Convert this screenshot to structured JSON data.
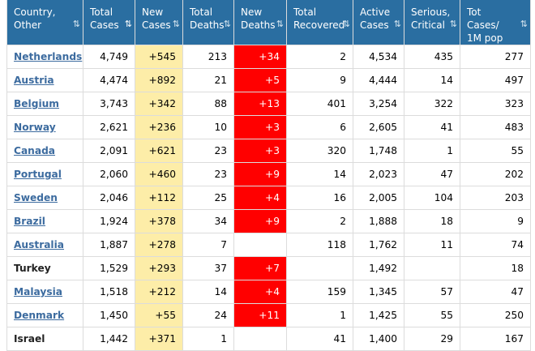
{
  "headers": [
    {
      "label": "Country,\nOther",
      "sort_icon": "sort-icon"
    },
    {
      "label": "Total\nCases",
      "sort_icon": "sort-desc-icon"
    },
    {
      "label": "New\nCases",
      "sort_icon": "sort-icon"
    },
    {
      "label": "Total\nDeaths",
      "sort_icon": "sort-icon"
    },
    {
      "label": "New\nDeaths",
      "sort_icon": "sort-icon"
    },
    {
      "label": "Total\nRecovered",
      "sort_icon": "sort-icon"
    },
    {
      "label": "Active\nCases",
      "sort_icon": "sort-icon"
    },
    {
      "label": "Serious,\nCritical",
      "sort_icon": "sort-icon"
    },
    {
      "label": "Tot Cases/\n1M pop",
      "sort_icon": "sort-icon"
    }
  ],
  "colors": {
    "header_bg": "#2a6ea1",
    "new_cases_bg": "#fdeda8",
    "new_deaths_bg": "#ff0000",
    "link": "#3c6b9f"
  },
  "rows": [
    {
      "country": "Netherlands",
      "link": true,
      "total_cases": "4,749",
      "new_cases": "+545",
      "total_deaths": "213",
      "new_deaths": "+34",
      "total_recovered": "2",
      "active_cases": "4,534",
      "serious": "435",
      "per_million": "277"
    },
    {
      "country": "Austria",
      "link": true,
      "total_cases": "4,474",
      "new_cases": "+892",
      "total_deaths": "21",
      "new_deaths": "+5",
      "total_recovered": "9",
      "active_cases": "4,444",
      "serious": "14",
      "per_million": "497"
    },
    {
      "country": "Belgium",
      "link": true,
      "total_cases": "3,743",
      "new_cases": "+342",
      "total_deaths": "88",
      "new_deaths": "+13",
      "total_recovered": "401",
      "active_cases": "3,254",
      "serious": "322",
      "per_million": "323"
    },
    {
      "country": "Norway",
      "link": true,
      "total_cases": "2,621",
      "new_cases": "+236",
      "total_deaths": "10",
      "new_deaths": "+3",
      "total_recovered": "6",
      "active_cases": "2,605",
      "serious": "41",
      "per_million": "483"
    },
    {
      "country": "Canada",
      "link": true,
      "total_cases": "2,091",
      "new_cases": "+621",
      "total_deaths": "23",
      "new_deaths": "+3",
      "total_recovered": "320",
      "active_cases": "1,748",
      "serious": "1",
      "per_million": "55"
    },
    {
      "country": "Portugal",
      "link": true,
      "total_cases": "2,060",
      "new_cases": "+460",
      "total_deaths": "23",
      "new_deaths": "+9",
      "total_recovered": "14",
      "active_cases": "2,023",
      "serious": "47",
      "per_million": "202"
    },
    {
      "country": "Sweden",
      "link": true,
      "total_cases": "2,046",
      "new_cases": "+112",
      "total_deaths": "25",
      "new_deaths": "+4",
      "total_recovered": "16",
      "active_cases": "2,005",
      "serious": "104",
      "per_million": "203"
    },
    {
      "country": "Brazil",
      "link": true,
      "total_cases": "1,924",
      "new_cases": "+378",
      "total_deaths": "34",
      "new_deaths": "+9",
      "total_recovered": "2",
      "active_cases": "1,888",
      "serious": "18",
      "per_million": "9"
    },
    {
      "country": "Australia",
      "link": true,
      "total_cases": "1,887",
      "new_cases": "+278",
      "total_deaths": "7",
      "new_deaths": "",
      "total_recovered": "118",
      "active_cases": "1,762",
      "serious": "11",
      "per_million": "74"
    },
    {
      "country": "Turkey",
      "link": false,
      "total_cases": "1,529",
      "new_cases": "+293",
      "total_deaths": "37",
      "new_deaths": "+7",
      "total_recovered": "",
      "active_cases": "1,492",
      "serious": "",
      "per_million": "18"
    },
    {
      "country": "Malaysia",
      "link": true,
      "total_cases": "1,518",
      "new_cases": "+212",
      "total_deaths": "14",
      "new_deaths": "+4",
      "total_recovered": "159",
      "active_cases": "1,345",
      "serious": "57",
      "per_million": "47"
    },
    {
      "country": "Denmark",
      "link": true,
      "total_cases": "1,450",
      "new_cases": "+55",
      "total_deaths": "24",
      "new_deaths": "+11",
      "total_recovered": "1",
      "active_cases": "1,425",
      "serious": "55",
      "per_million": "250"
    },
    {
      "country": "Israel",
      "link": false,
      "total_cases": "1,442",
      "new_cases": "+371",
      "total_deaths": "1",
      "new_deaths": "",
      "total_recovered": "41",
      "active_cases": "1,400",
      "serious": "29",
      "per_million": "167"
    }
  ]
}
